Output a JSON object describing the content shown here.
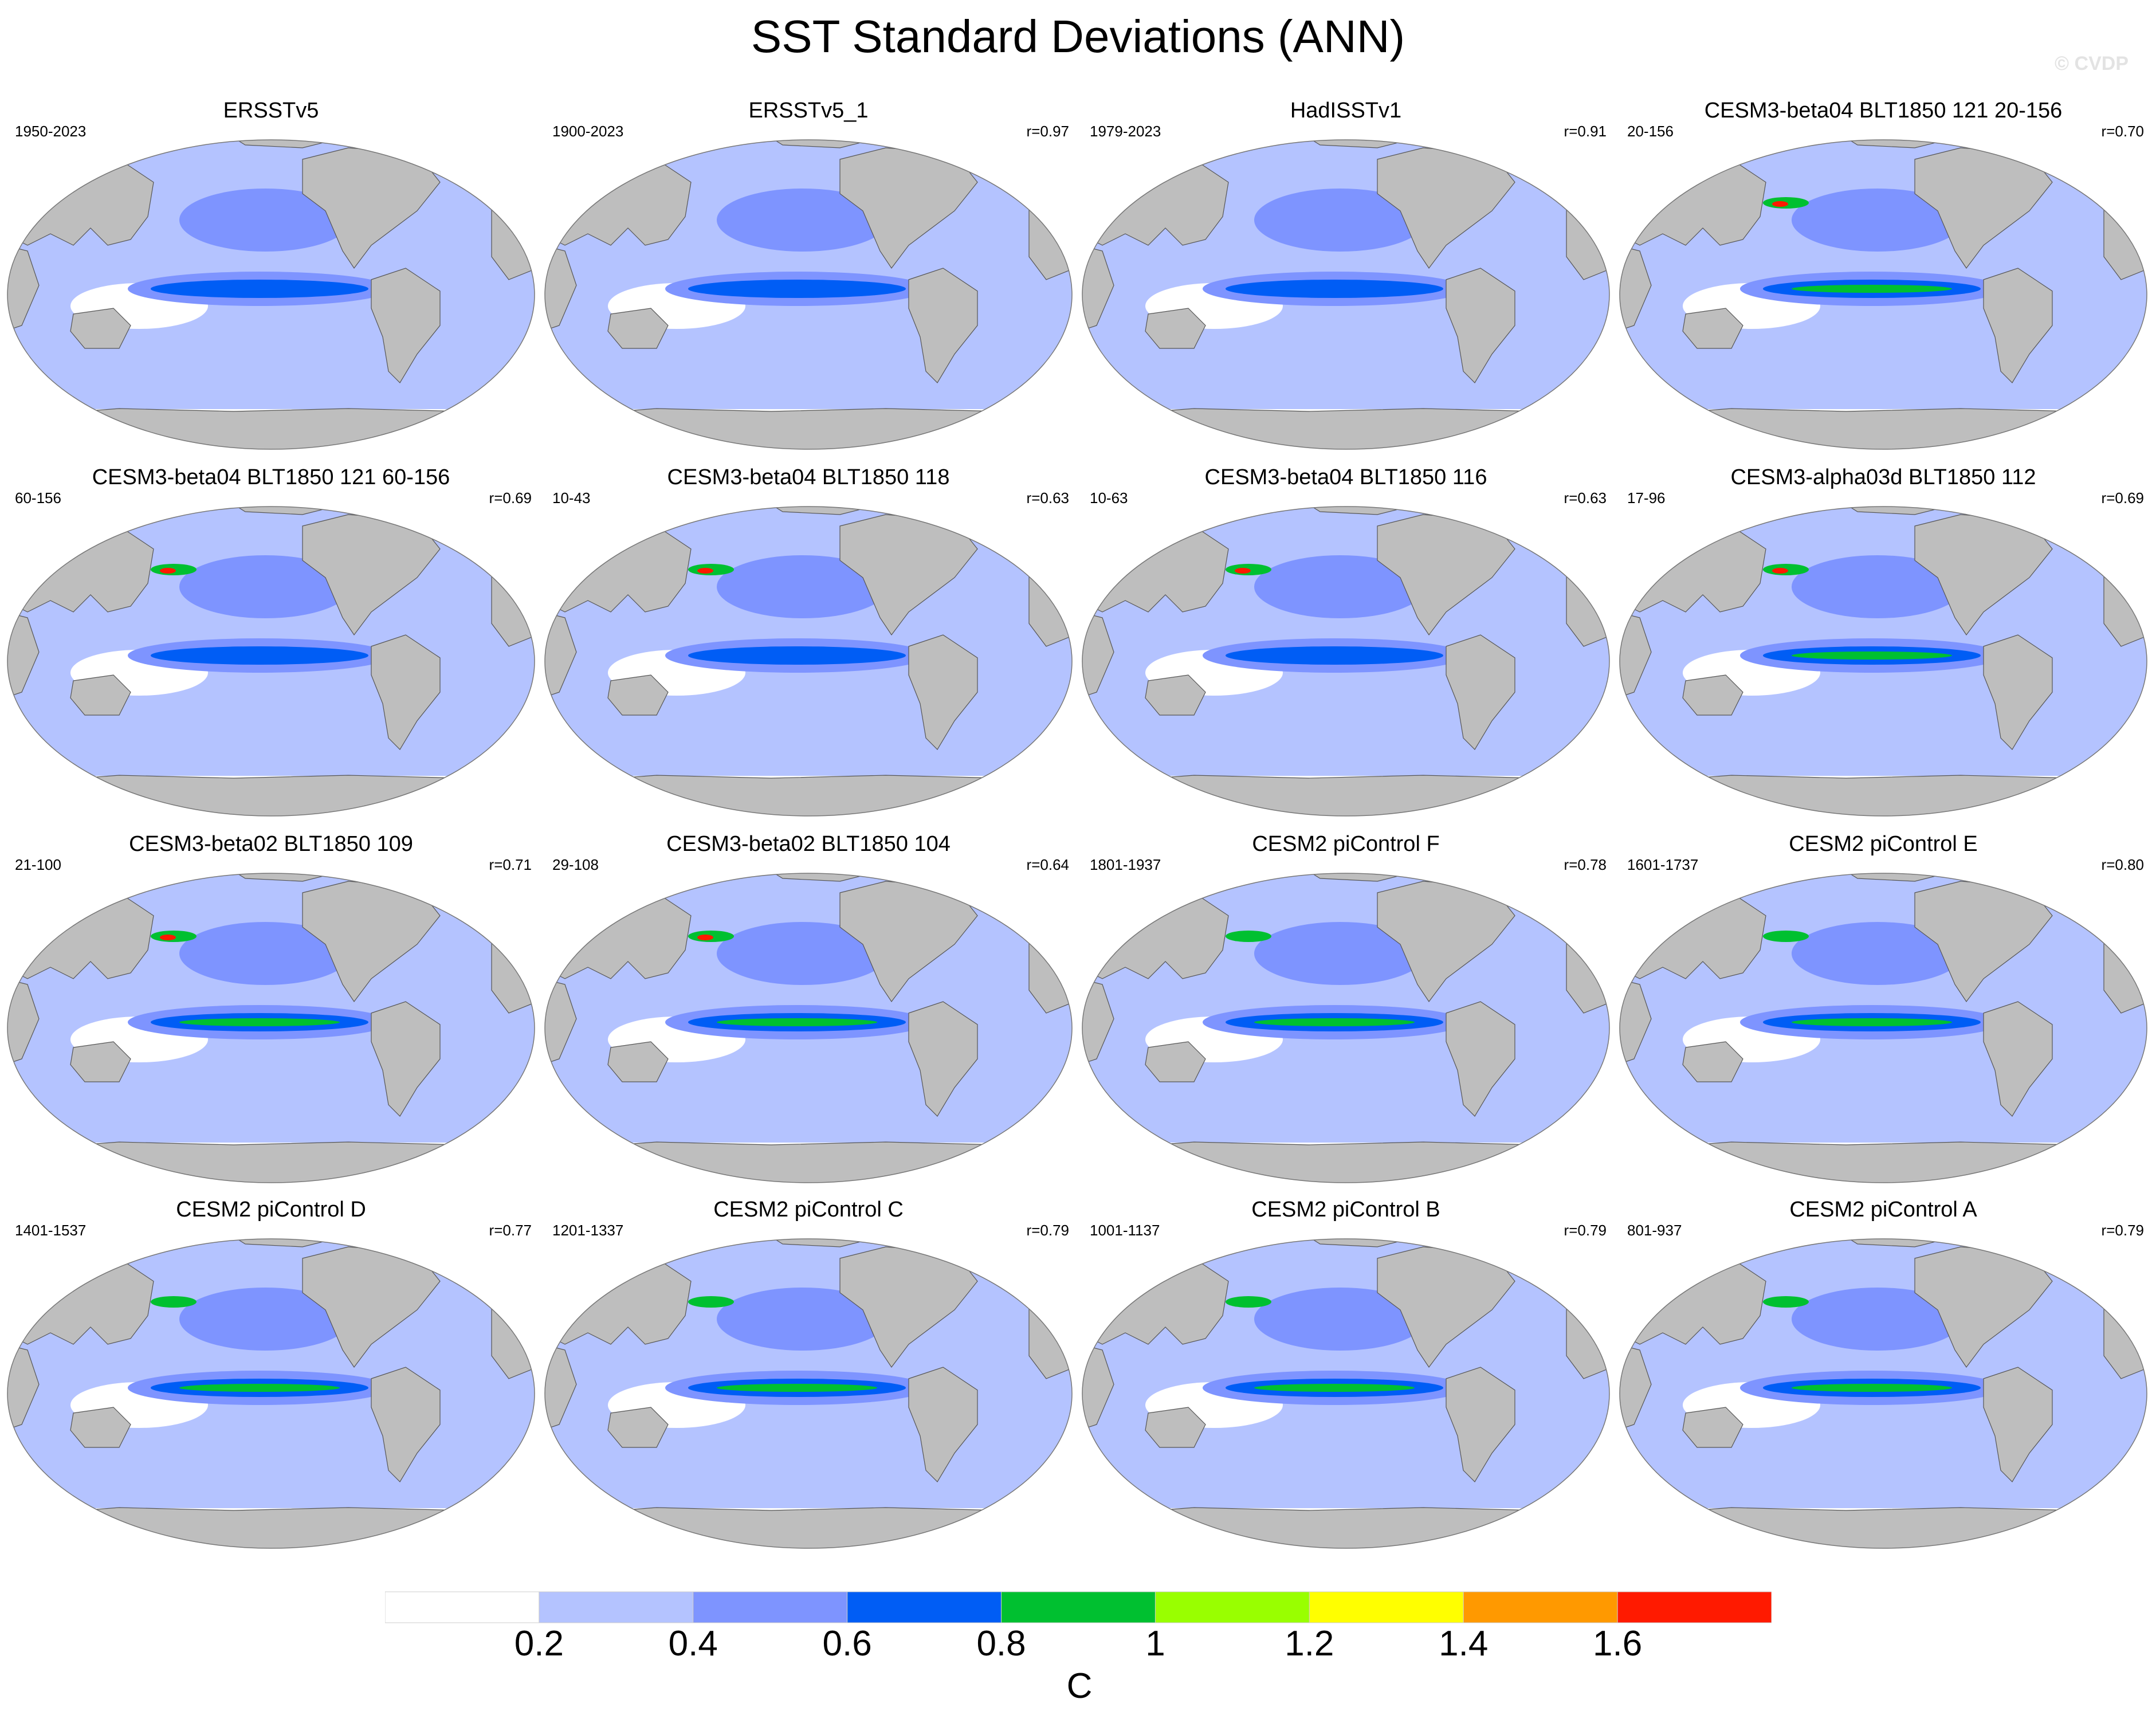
{
  "title": "SST Standard Deviations (ANN)",
  "watermark": "© CVDP",
  "panels": [
    {
      "title": "ERSSTv5",
      "years": "1950-2023",
      "r": ""
    },
    {
      "title": "ERSSTv5_1",
      "years": "1900-2023",
      "r": "r=0.97"
    },
    {
      "title": "HadISSTv1",
      "years": "1979-2023",
      "r": "r=0.91"
    },
    {
      "title": "CESM3-beta04 BLT1850 121 20-156",
      "years": "20-156",
      "r": "r=0.70"
    },
    {
      "title": "CESM3-beta04 BLT1850 121 60-156",
      "years": "60-156",
      "r": "r=0.69"
    },
    {
      "title": "CESM3-beta04 BLT1850 118",
      "years": "10-43",
      "r": "r=0.63"
    },
    {
      "title": "CESM3-beta04 BLT1850 116",
      "years": "10-63",
      "r": "r=0.63"
    },
    {
      "title": "CESM3-alpha03d BLT1850 112",
      "years": "17-96",
      "r": "r=0.69"
    },
    {
      "title": "CESM3-beta02 BLT1850 109",
      "years": "21-100",
      "r": "r=0.71"
    },
    {
      "title": "CESM3-beta02 BLT1850 104",
      "years": "29-108",
      "r": "r=0.64"
    },
    {
      "title": "CESM2 piControl F",
      "years": "1801-1937",
      "r": "r=0.78"
    },
    {
      "title": "CESM2 piControl E",
      "years": "1601-1737",
      "r": "r=0.80"
    },
    {
      "title": "CESM2 piControl D",
      "years": "1401-1537",
      "r": "r=0.77"
    },
    {
      "title": "CESM2 piControl C",
      "years": "1201-1337",
      "r": "r=0.79"
    },
    {
      "title": "CESM2 piControl B",
      "years": "1001-1137",
      "r": "r=0.79"
    },
    {
      "title": "CESM2 piControl A",
      "years": "801-937",
      "r": "r=0.79"
    }
  ],
  "colorbar": {
    "labels": [
      "0.2",
      "0.4",
      "0.6",
      "0.8",
      "1",
      "1.2",
      "1.4",
      "1.6"
    ],
    "colors": [
      "#ffffff",
      "#b4c3ff",
      "#7e94ff",
      "#005df5",
      "#00c030",
      "#99ff00",
      "#ffff00",
      "#ff9900",
      "#ff1a00"
    ],
    "units": "C"
  },
  "colors": {
    "land": "#bebebe",
    "ocean_low": "#b4c3ff",
    "ocean_mid": "#7e94ff",
    "ocean_high": "#005df5",
    "enso_strong": "#00c030",
    "extreme": "#ff1a00"
  }
}
